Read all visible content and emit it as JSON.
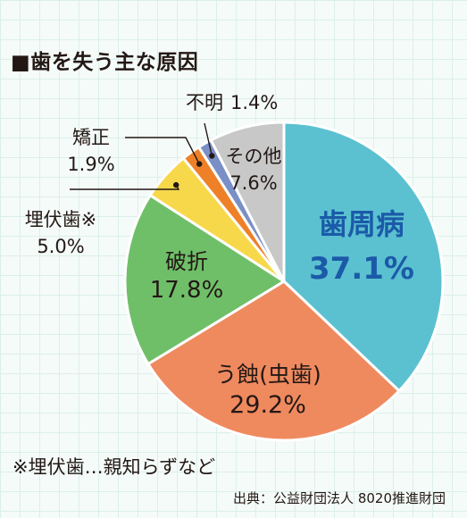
{
  "chart_data": {
    "type": "pie",
    "title": "■歯を失う主な原因",
    "slices": [
      {
        "label": "歯周病",
        "value": 37.1,
        "display": "37.1%",
        "color": "#5bc1d1"
      },
      {
        "label": "う蝕(虫歯)",
        "value": 29.2,
        "display": "29.2%",
        "color": "#ef8a5f"
      },
      {
        "label": "破折",
        "value": 17.8,
        "display": "17.8%",
        "color": "#6fbf69"
      },
      {
        "label": "埋伏歯※",
        "value": 5.0,
        "display": "5.0%",
        "color": "#f7d84a"
      },
      {
        "label": "矯正",
        "value": 1.9,
        "display": "1.9%",
        "color": "#ee8027"
      },
      {
        "label": "不明",
        "value": 1.4,
        "display": "1.4%",
        "color": "#7a8fc6"
      },
      {
        "label": "その他",
        "value": 7.6,
        "display": "7.6%",
        "color": "#c8c8c8"
      }
    ],
    "start_angle": "12 o'clock",
    "direction": "clockwise",
    "legend": "none"
  },
  "footnote": "※埋伏歯…親知らずなど",
  "source": "出典：公益財団法人 8020推進財団"
}
